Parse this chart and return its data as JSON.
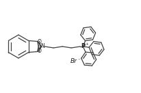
{
  "bg_color": "#ffffff",
  "line_color": "#404040",
  "line_width": 0.9,
  "text_color": "#202020",
  "br_label": "Br",
  "br_sup": "⁻",
  "p_label": "P",
  "plus_label": "+",
  "o_label": "O",
  "n_label": "N"
}
